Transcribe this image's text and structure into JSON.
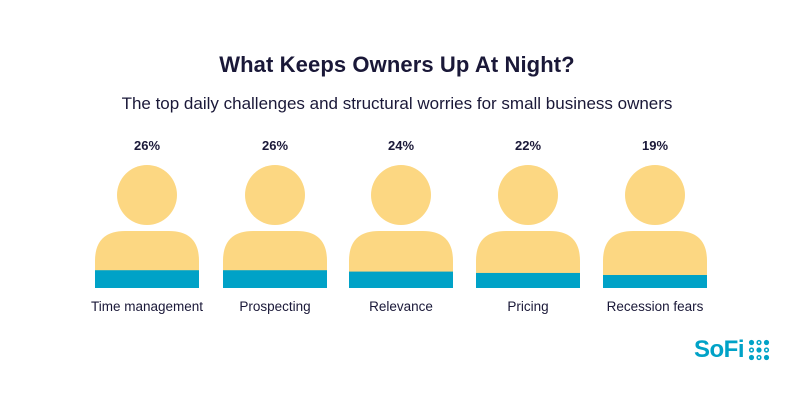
{
  "chart_data": {
    "type": "bar",
    "title": "What Keeps Owners Up At Night?",
    "subtitle": "The top daily challenges and structural worries for small business owners",
    "categories": [
      "Time management",
      "Prospecting",
      "Relevance",
      "Pricing",
      "Recession fears"
    ],
    "values": [
      26,
      26,
      24,
      22,
      19
    ],
    "value_labels": [
      "26%",
      "26%",
      "24%",
      "22%",
      "19%"
    ],
    "unit": "%",
    "ylim": [
      0,
      100
    ],
    "fill_color": "#00a2c7",
    "figure_color": "#fcd782"
  },
  "brand": {
    "logo_text": "SoFi",
    "color": "#00a2c7"
  }
}
